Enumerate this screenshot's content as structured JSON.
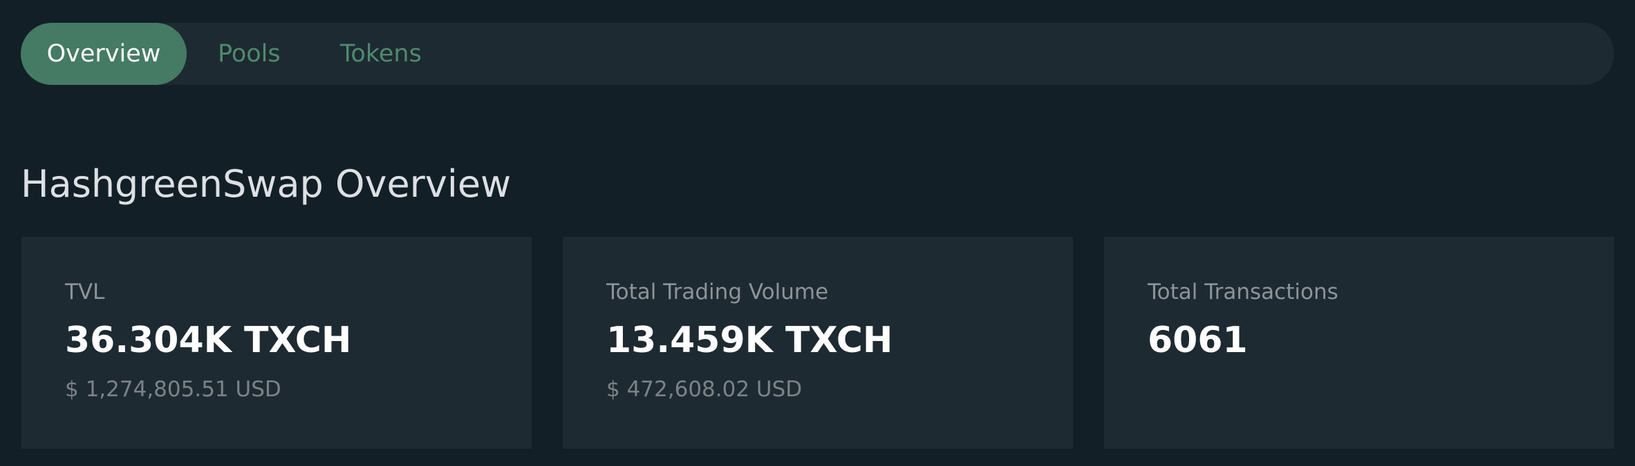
{
  "tabs": {
    "overview": "Overview",
    "pools": "Pools",
    "tokens": "Tokens"
  },
  "heading": "HashgreenSwap Overview",
  "stats": {
    "tvl": {
      "label": "TVL",
      "value": "36.304K TXCH",
      "usd": "$ 1,274,805.51 USD"
    },
    "volume": {
      "label": "Total Trading Volume",
      "value": "13.459K TXCH",
      "usd": "$ 472,608.02 USD"
    },
    "transactions": {
      "label": "Total Transactions",
      "value": "6061"
    }
  },
  "colors": {
    "background": "#131f27",
    "panel": "#1e2a31",
    "accent": "#457a64",
    "tab_text": "#4f8a6e"
  }
}
